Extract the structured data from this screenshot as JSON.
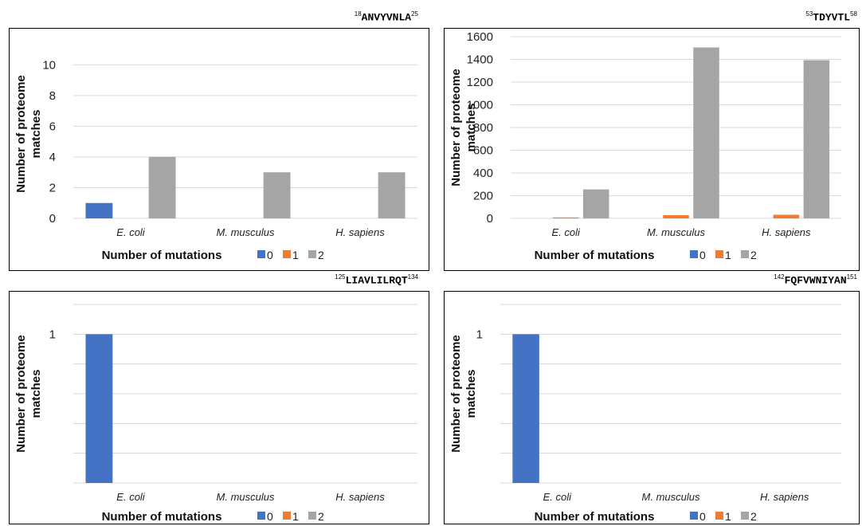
{
  "chart_data": [
    {
      "type": "bar",
      "title": {
        "sup_start": "18",
        "seq": "ANVYVNLA",
        "sup_end": "25"
      },
      "categories": [
        "E. coli",
        "M. musculus",
        "H. sapiens"
      ],
      "series": [
        {
          "name": "0",
          "values": [
            1,
            0,
            0
          ]
        },
        {
          "name": "1",
          "values": [
            0,
            0,
            0
          ]
        },
        {
          "name": "2",
          "values": [
            4,
            3,
            3
          ]
        }
      ],
      "ylim": [
        0,
        11
      ],
      "yticks": [
        0,
        2,
        4,
        6,
        8,
        10
      ],
      "ylabel": [
        "Number of proteome",
        "matches"
      ],
      "xlabel": "Number of mutations",
      "grid": true,
      "legend": "bottom-inline"
    },
    {
      "type": "bar",
      "title": {
        "sup_start": "53",
        "seq": "TDYVTL",
        "sup_end": "58"
      },
      "categories": [
        "E. coli",
        "M. musculus",
        "H. sapiens"
      ],
      "series": [
        {
          "name": "0",
          "values": [
            0,
            0,
            0
          ]
        },
        {
          "name": "1",
          "values": [
            8,
            28,
            32
          ]
        },
        {
          "name": "2",
          "values": [
            255,
            1505,
            1393
          ]
        }
      ],
      "ylim": [
        0,
        1600
      ],
      "yticks": [
        0,
        200,
        400,
        600,
        800,
        1000,
        1200,
        1400,
        1600
      ],
      "ylabel": [
        "Number of proteome",
        "matches"
      ],
      "xlabel": "Number of mutations",
      "grid": true,
      "legend": "bottom-inline"
    },
    {
      "type": "bar",
      "title": {
        "sup_start": "125",
        "seq": "LIAVLILRQT",
        "sup_end": "134"
      },
      "categories": [
        "E. coli",
        "M. musculus",
        "H. sapiens"
      ],
      "series": [
        {
          "name": "0",
          "values": [
            1,
            0,
            0
          ]
        },
        {
          "name": "1",
          "values": [
            0,
            0,
            0
          ]
        },
        {
          "name": "2",
          "values": [
            0,
            0,
            0
          ]
        }
      ],
      "ylim": [
        0,
        1.2
      ],
      "yticks": [
        1
      ],
      "ylabel": [
        "Number of proteome",
        "matches"
      ],
      "xlabel": "Number of mutations",
      "grid": true,
      "legend": "bottom-inline"
    },
    {
      "type": "bar",
      "title": {
        "sup_start": "142",
        "seq": "FQFVWNIYAN",
        "sup_end": "151"
      },
      "categories": [
        "E. coli",
        "M. musculus",
        "H. sapiens"
      ],
      "series": [
        {
          "name": "0",
          "values": [
            1,
            0,
            0
          ]
        },
        {
          "name": "1",
          "values": [
            0,
            0,
            0
          ]
        },
        {
          "name": "2",
          "values": [
            0,
            0,
            0
          ]
        }
      ],
      "ylim": [
        0,
        1.2
      ],
      "yticks": [
        1
      ],
      "ylabel": [
        "Number of proteome",
        "matches"
      ],
      "xlabel": "Number of mutations",
      "grid": true,
      "legend": "bottom-inline"
    }
  ],
  "colors": {
    "series0": "#4472c4",
    "series1": "#ed7d31",
    "series2": "#a5a5a5"
  }
}
